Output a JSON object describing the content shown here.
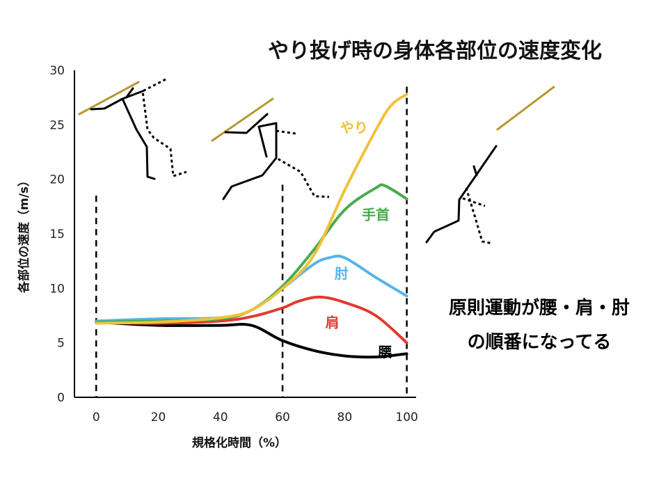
{
  "chart_data": {
    "type": "line",
    "title": "やり投げ時の身体各部位の速度変化",
    "xlabel": "規格化時間（%）",
    "ylabel": "各部位の速度（m/s）",
    "xlim": [
      -7,
      103
    ],
    "ylim": [
      0,
      30
    ],
    "x_ticks": [
      0,
      20,
      40,
      60,
      80,
      100
    ],
    "y_ticks": [
      0,
      5,
      10,
      15,
      20,
      25,
      30
    ],
    "phase_markers": [
      0,
      60,
      100
    ],
    "grid": false,
    "legend": "none",
    "series": [
      {
        "name": "腰",
        "color": "#000000",
        "x": [
          0,
          20,
          40,
          50,
          60,
          70,
          80,
          90,
          100
        ],
        "y": [
          6.9,
          6.6,
          6.6,
          6.6,
          5.2,
          4.3,
          3.8,
          3.7,
          4.0
        ]
      },
      {
        "name": "肩",
        "color": "#e03a2e",
        "x": [
          0,
          20,
          40,
          50,
          60,
          65,
          72,
          80,
          90,
          100
        ],
        "y": [
          6.9,
          6.8,
          7.0,
          7.4,
          8.2,
          8.8,
          9.2,
          8.7,
          7.5,
          5.0
        ]
      },
      {
        "name": "肘",
        "color": "#55b4e8",
        "x": [
          0,
          20,
          40,
          50,
          60,
          70,
          75,
          80,
          90,
          100
        ],
        "y": [
          7.0,
          7.2,
          7.3,
          8.0,
          10.0,
          12.2,
          12.8,
          12.8,
          11.0,
          9.3
        ]
      },
      {
        "name": "手首",
        "color": "#4aab4e",
        "x": [
          0,
          20,
          40,
          50,
          60,
          70,
          80,
          90,
          93,
          100
        ],
        "y": [
          6.9,
          7.0,
          7.2,
          8.0,
          10.2,
          13.5,
          17.2,
          19.2,
          19.4,
          18.2
        ]
      },
      {
        "name": "やり",
        "color": "#f2c13a",
        "x": [
          0,
          20,
          40,
          50,
          60,
          70,
          80,
          90,
          95,
          100
        ],
        "y": [
          6.8,
          6.9,
          7.3,
          8.0,
          10.0,
          13.0,
          19.0,
          24.5,
          26.8,
          27.8
        ]
      }
    ]
  },
  "annotation": {
    "line1": "原則運動が腰・肩・肘",
    "line2": "の順番になってる"
  }
}
